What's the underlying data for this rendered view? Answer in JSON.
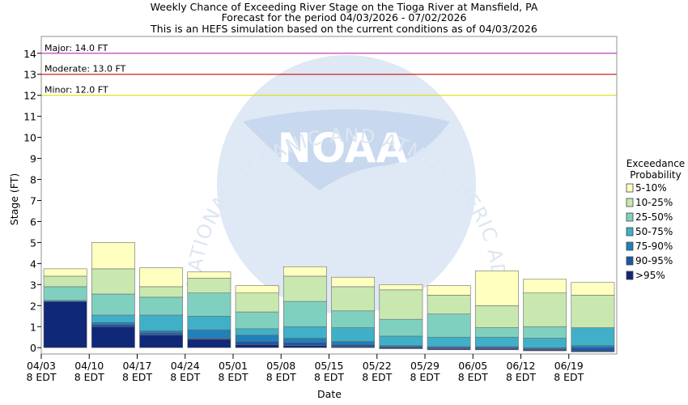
{
  "chart_data": {
    "type": "bar",
    "title_lines": [
      "Weekly Chance of Exceeding River Stage on the Tioga River at Mansfield, PA",
      "Forecast for the period 04/03/2026 - 07/02/2026",
      "This is an HEFS simulation based on the current conditions as of 04/03/2026"
    ],
    "xlabel": "Date",
    "ylabel": "Stage (FT)",
    "ylim": [
      -0.3,
      14.8
    ],
    "yticks": [
      0,
      1,
      2,
      3,
      4,
      5,
      6,
      7,
      8,
      9,
      10,
      11,
      12,
      13,
      14
    ],
    "x_ticks": [
      {
        "date": "04/03",
        "time": "8 EDT"
      },
      {
        "date": "04/10",
        "time": "8 EDT"
      },
      {
        "date": "04/17",
        "time": "8 EDT"
      },
      {
        "date": "04/24",
        "time": "8 EDT"
      },
      {
        "date": "05/01",
        "time": "8 EDT"
      },
      {
        "date": "05/08",
        "time": "8 EDT"
      },
      {
        "date": "05/15",
        "time": "8 EDT"
      },
      {
        "date": "05/22",
        "time": "8 EDT"
      },
      {
        "date": "05/29",
        "time": "8 EDT"
      },
      {
        "date": "06/05",
        "time": "8 EDT"
      },
      {
        "date": "06/12",
        "time": "8 EDT"
      },
      {
        "date": "06/19",
        "time": "8 EDT"
      }
    ],
    "thresholds": [
      {
        "label": "Major: 14.0 FT",
        "value": 14.0,
        "color": "#c040c0"
      },
      {
        "label": "Moderate: 13.0 FT",
        "value": 13.0,
        "color": "#d02020"
      },
      {
        "label": "Minor: 12.0 FT",
        "value": 12.0,
        "color": "#e0e000"
      }
    ],
    "legend": {
      "title_lines": [
        "Exceedance",
        "Probability"
      ],
      "placement": "right"
    },
    "bands": [
      {
        "name": "5-10%",
        "color": "#ffffc0"
      },
      {
        "name": "10-25%",
        "color": "#c8e8b0"
      },
      {
        "name": "25-50%",
        "color": "#80d0c0"
      },
      {
        "name": "50-75%",
        "color": "#40b0c8"
      },
      {
        "name": "75-90%",
        "color": "#2080b8"
      },
      {
        "name": ">95%",
        "color": "#102878"
      },
      {
        "name": "90-95%",
        "color": "#1858a8"
      }
    ],
    "legend_order": [
      "5-10%",
      "10-25%",
      "25-50%",
      "50-75%",
      "75-90%",
      "90-95%",
      ">95%"
    ],
    "weeks": [
      {
        "bounds": [
          0.0,
          2.2,
          2.2,
          2.2,
          2.25,
          2.9,
          3.4,
          3.75
        ]
      },
      {
        "bounds": [
          0.0,
          1.0,
          1.1,
          1.2,
          1.55,
          2.55,
          3.75,
          5.0
        ]
      },
      {
        "bounds": [
          0.0,
          0.6,
          0.7,
          0.8,
          1.55,
          2.4,
          2.9,
          3.8
        ]
      },
      {
        "bounds": [
          0.0,
          0.4,
          0.45,
          0.85,
          1.5,
          2.6,
          3.3,
          3.6
        ]
      },
      {
        "bounds": [
          0.0,
          0.15,
          0.3,
          0.6,
          0.9,
          1.7,
          2.6,
          2.95
        ]
      },
      {
        "bounds": [
          0.0,
          0.1,
          0.25,
          0.45,
          1.0,
          2.2,
          3.4,
          3.85
        ]
      },
      {
        "bounds": [
          0.0,
          0.05,
          0.15,
          0.3,
          0.95,
          1.75,
          2.9,
          3.35
        ]
      },
      {
        "bounds": [
          -0.05,
          0.0,
          0.05,
          0.1,
          0.55,
          1.35,
          2.75,
          3.0
        ]
      },
      {
        "bounds": [
          -0.1,
          -0.05,
          0.0,
          0.05,
          0.5,
          1.6,
          2.5,
          2.95
        ]
      },
      {
        "bounds": [
          -0.1,
          -0.05,
          0.0,
          0.05,
          0.5,
          0.95,
          2.0,
          3.65
        ]
      },
      {
        "bounds": [
          -0.15,
          -0.1,
          -0.05,
          0.0,
          0.45,
          1.0,
          2.6,
          3.25
        ]
      },
      {
        "bounds": [
          -0.2,
          -0.15,
          0.0,
          0.1,
          0.95,
          0.95,
          2.5,
          3.1
        ]
      }
    ]
  },
  "watermark": {
    "logo_text": "NOAA",
    "ring_text": "NATIONAL OCEANIC AND ATMOSPHERIC ADMINISTRATION"
  }
}
